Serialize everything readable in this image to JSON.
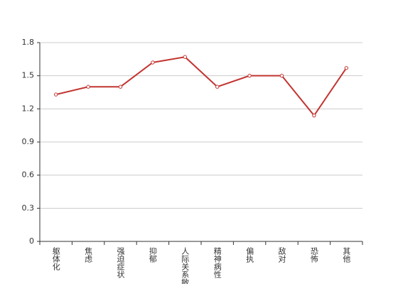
{
  "chart_data": {
    "type": "line",
    "categories": [
      "躯体化",
      "焦虑",
      "强迫症状",
      "抑郁",
      "人际关系敏感",
      "精神病性",
      "偏执",
      "敌对",
      "恐怖",
      "其他"
    ],
    "series": [
      {
        "color": "#c23531",
        "values": [
          1.33,
          1.4,
          1.4,
          1.62,
          1.67,
          1.4,
          1.5,
          1.5,
          1.14,
          1.57
        ]
      }
    ],
    "ylim": [
      0,
      1.8
    ],
    "yticks": [
      0,
      0.3,
      0.6,
      0.9,
      1.2,
      1.5,
      1.8
    ],
    "grid": true
  }
}
